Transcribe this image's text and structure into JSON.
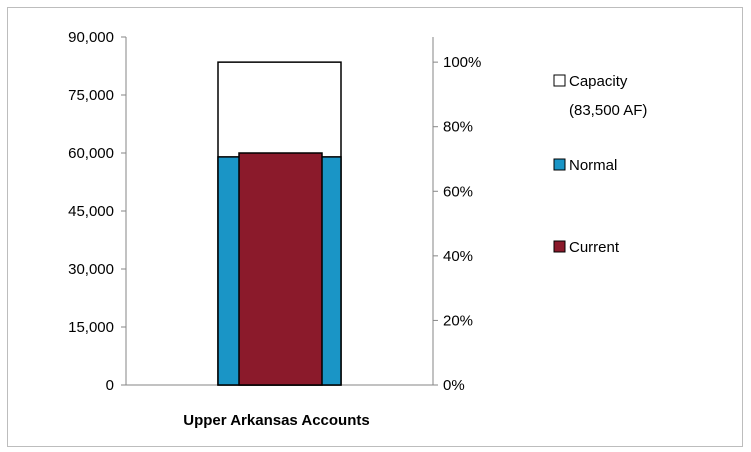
{
  "chart_data": {
    "type": "bar",
    "categories": [
      "Upper Arkansas Accounts"
    ],
    "series": [
      {
        "name": "Capacity",
        "name_line2": "(83,500 AF)",
        "values": [
          83500
        ],
        "color": "#ffffff",
        "stroke": "#000000",
        "role": "capacity"
      },
      {
        "name": "Normal",
        "values": [
          59000
        ],
        "color": "#1a95c6",
        "stroke": "#000000",
        "role": "normal"
      },
      {
        "name": "Current",
        "values": [
          60000
        ],
        "color": "#8b1a2b",
        "stroke": "#000000",
        "role": "current"
      }
    ],
    "y_axis": {
      "min": 0,
      "max": 90000,
      "ticks": [
        0,
        15000,
        30000,
        45000,
        60000,
        75000,
        90000
      ],
      "tick_labels": [
        "0",
        "15,000",
        "30,000",
        "45,000",
        "60,000",
        "75,000",
        "90,000"
      ]
    },
    "y2_axis": {
      "min": 0,
      "max": 83500,
      "ticks": [
        0,
        0.2,
        0.4,
        0.6,
        0.8,
        1.0
      ],
      "tick_labels": [
        "0%",
        "20%",
        "40%",
        "60%",
        "80%",
        "100%"
      ]
    },
    "legend_position": "right",
    "grid": false
  }
}
